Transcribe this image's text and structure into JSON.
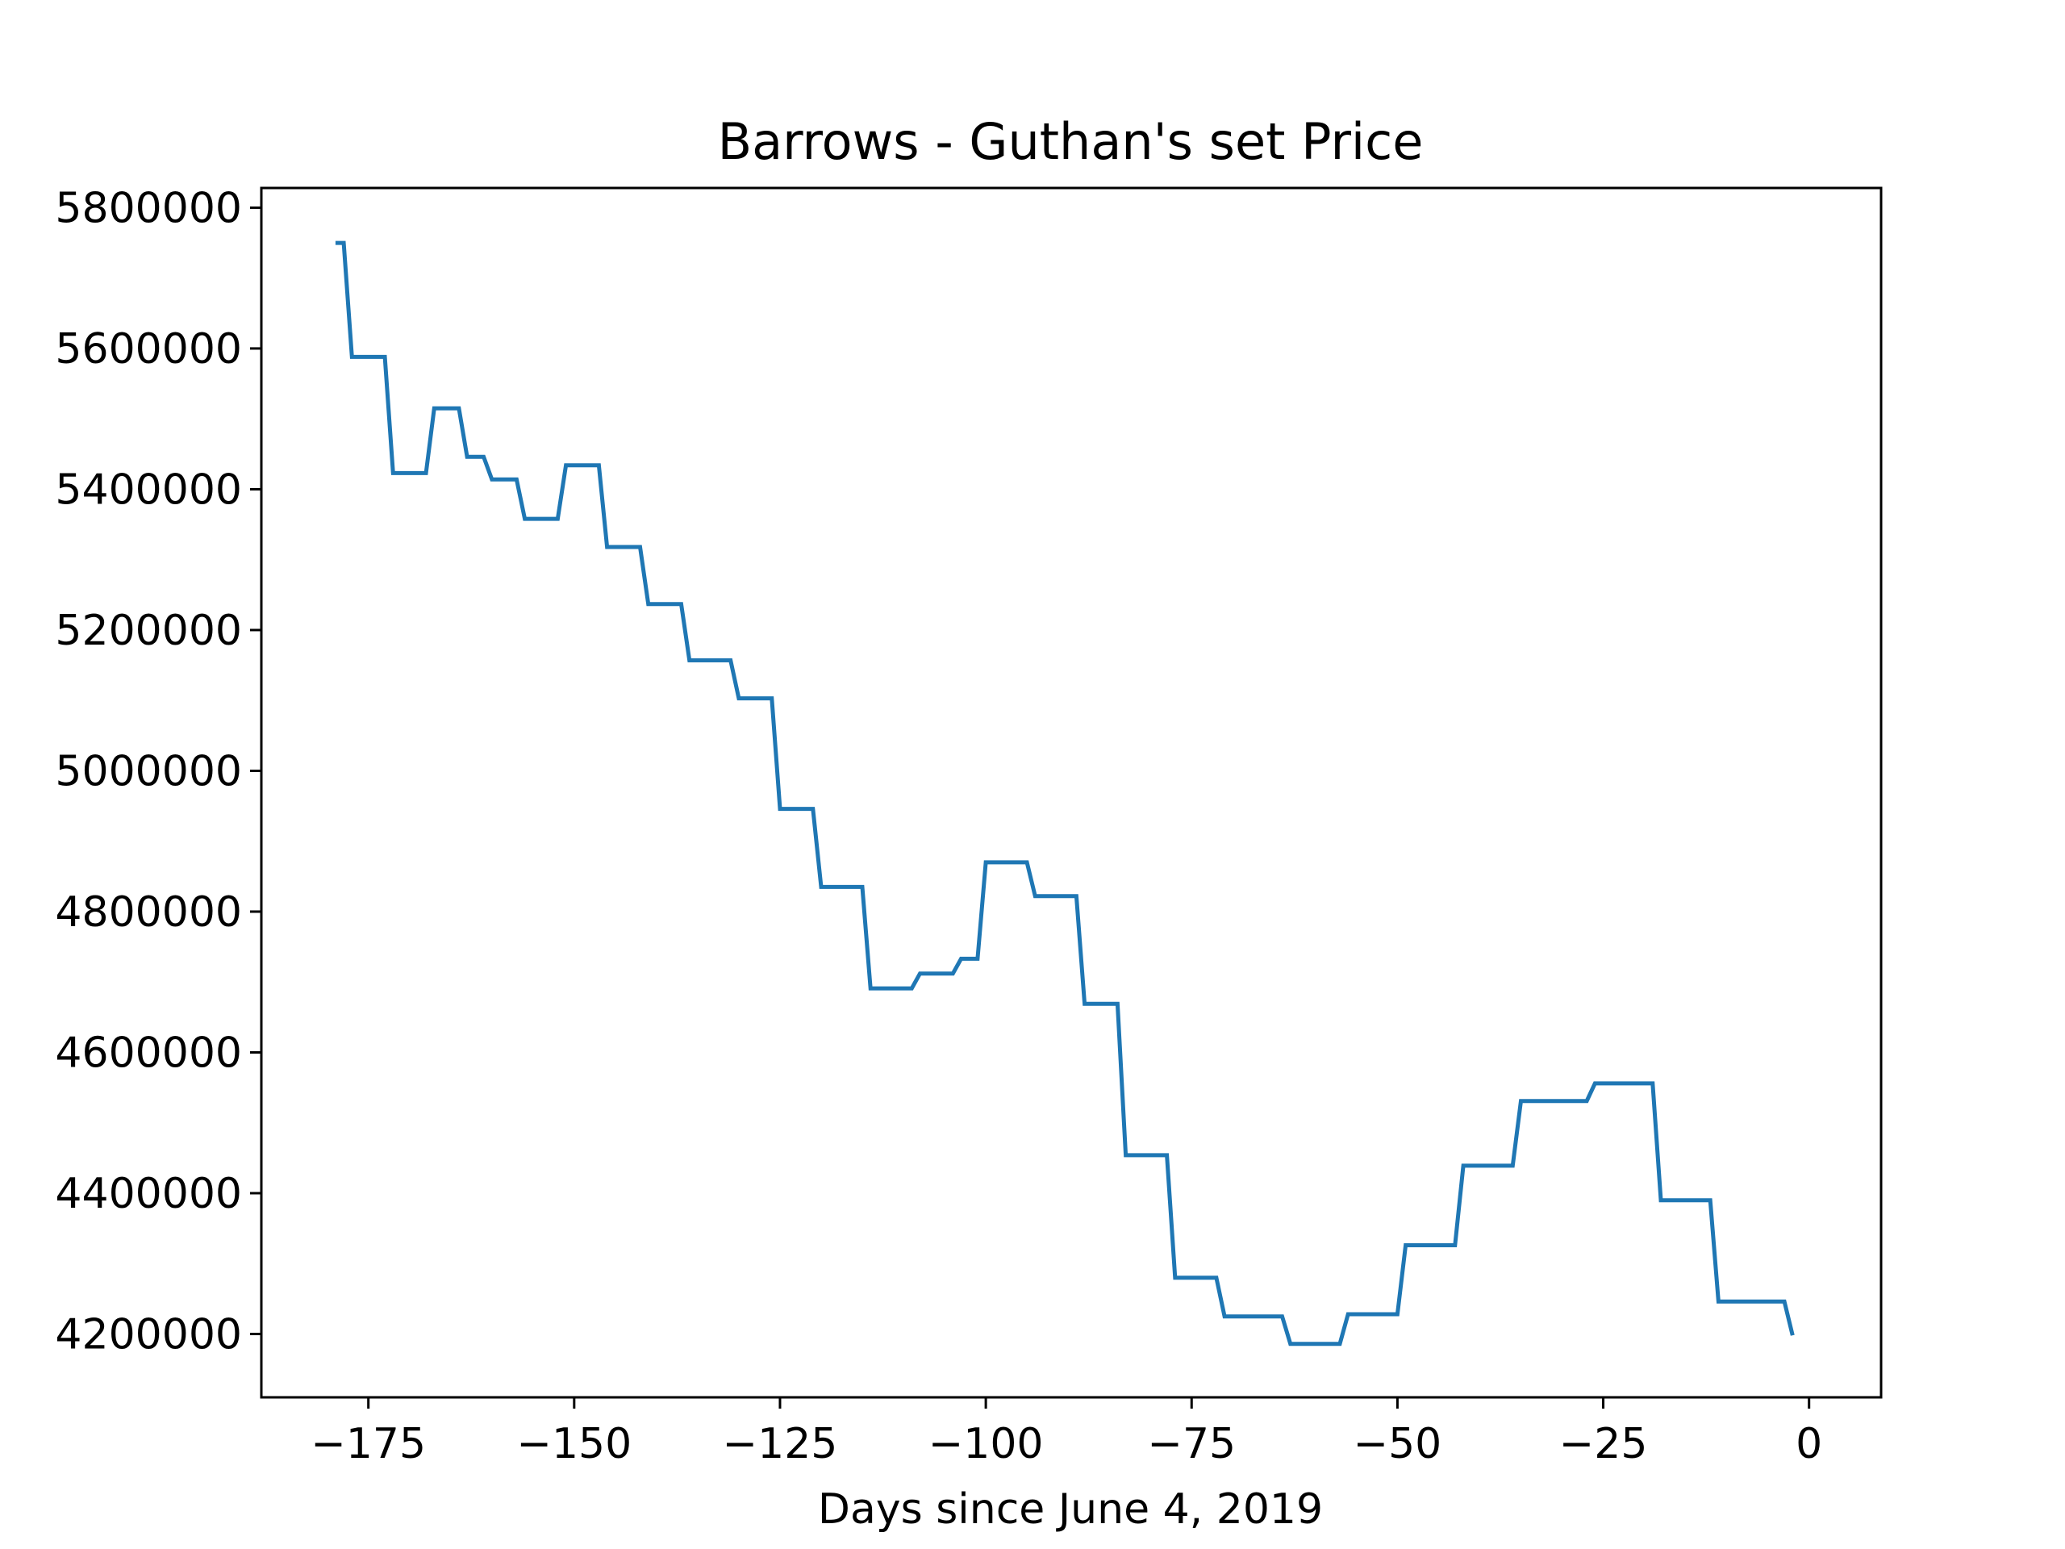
{
  "chart_data": {
    "type": "line",
    "title": "Barrows - Guthan's set Price",
    "xlabel": "Days since June 4, 2019",
    "ylabel": "",
    "xlim": [
      -188,
      8.75
    ],
    "ylim": [
      4110000,
      5828000
    ],
    "xticks": [
      -175,
      -150,
      -125,
      -100,
      -75,
      -50,
      -25,
      0
    ],
    "xtick_labels": [
      "−175",
      "−150",
      "−125",
      "−100",
      "−75",
      "−50",
      "−25",
      "0"
    ],
    "yticks": [
      4200000,
      4400000,
      4600000,
      4800000,
      5000000,
      5200000,
      5400000,
      5600000,
      5800000
    ],
    "ytick_labels": [
      "4200000",
      "4400000",
      "4600000",
      "4800000",
      "5000000",
      "5200000",
      "5400000",
      "5600000",
      "5800000"
    ],
    "grid": false,
    "line_color": "#1f77b4",
    "series": [
      {
        "name": "",
        "points": [
          [
            -179,
            5750000
          ],
          [
            -178,
            5750000
          ],
          [
            -177,
            5588000
          ],
          [
            -173,
            5588000
          ],
          [
            -172,
            5423000
          ],
          [
            -168,
            5423000
          ],
          [
            -167,
            5515000
          ],
          [
            -164,
            5515000
          ],
          [
            -163,
            5446000
          ],
          [
            -161,
            5446000
          ],
          [
            -160,
            5414000
          ],
          [
            -157,
            5414000
          ],
          [
            -156,
            5358000
          ],
          [
            -152,
            5358000
          ],
          [
            -151,
            5434000
          ],
          [
            -147,
            5434000
          ],
          [
            -146,
            5318000
          ],
          [
            -142,
            5318000
          ],
          [
            -141,
            5237000
          ],
          [
            -137,
            5237000
          ],
          [
            -136,
            5157000
          ],
          [
            -131,
            5157000
          ],
          [
            -130,
            5103000
          ],
          [
            -126,
            5103000
          ],
          [
            -125,
            4946000
          ],
          [
            -121,
            4946000
          ],
          [
            -120,
            4835000
          ],
          [
            -115,
            4835000
          ],
          [
            -114,
            4691000
          ],
          [
            -109,
            4691000
          ],
          [
            -108,
            4712000
          ],
          [
            -104,
            4712000
          ],
          [
            -103,
            4733000
          ],
          [
            -101,
            4733000
          ],
          [
            -100,
            4870000
          ],
          [
            -95,
            4870000
          ],
          [
            -94,
            4822000
          ],
          [
            -89,
            4822000
          ],
          [
            -88,
            4669000
          ],
          [
            -84,
            4669000
          ],
          [
            -83,
            4454000
          ],
          [
            -78,
            4454000
          ],
          [
            -77,
            4280000
          ],
          [
            -72,
            4280000
          ],
          [
            -71,
            4225000
          ],
          [
            -64,
            4225000
          ],
          [
            -63,
            4186000
          ],
          [
            -57,
            4186000
          ],
          [
            -56,
            4228000
          ],
          [
            -50,
            4228000
          ],
          [
            -49,
            4326000
          ],
          [
            -43,
            4326000
          ],
          [
            -42,
            4439000
          ],
          [
            -36,
            4439000
          ],
          [
            -35,
            4531000
          ],
          [
            -27,
            4531000
          ],
          [
            -26,
            4556000
          ],
          [
            -19,
            4556000
          ],
          [
            -18,
            4390000
          ],
          [
            -12,
            4390000
          ],
          [
            -11,
            4246000
          ],
          [
            -3,
            4246000
          ],
          [
            -2,
            4198000
          ]
        ]
      }
    ]
  }
}
